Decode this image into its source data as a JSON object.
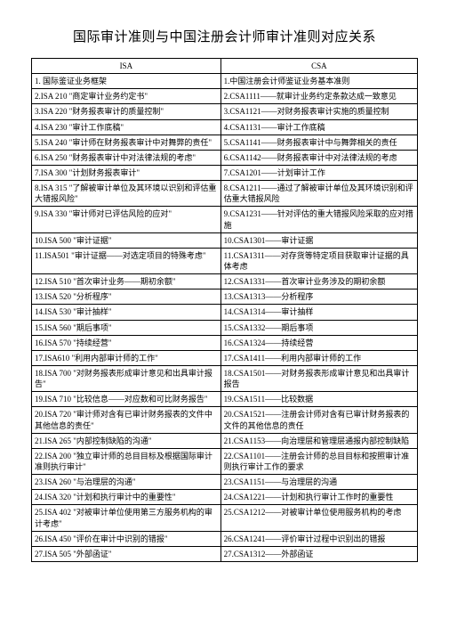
{
  "title": "国际审计准则与中国注册会计师审计准则对应关系",
  "headers": {
    "left": "ISA",
    "right": "CSA"
  },
  "rows": [
    {
      "l": "1. 国际鉴证业务框架",
      "r": "1.中国注册会计师鉴证业务基本准则"
    },
    {
      "l": "2.ISA 210 \"商定审计业务约定书\"",
      "r": "2.CSA1111——就审计业务约定条款达成一致意见"
    },
    {
      "l": "3.ISA 220 \"财务报表审计的质量控制\"",
      "r": "3.CSA1121——对财务报表审计实施的质量控制"
    },
    {
      "l": "4.ISA 230 \"审计工作底稿\"",
      "r": "4.CSA1131——审计工作底稿"
    },
    {
      "l": "5.ISA 240 \"审计师在财务报表审计中对舞弊的责任\"",
      "r": "5.CSA1141——财务报表审计中与舞弊相关的责任"
    },
    {
      "l": "6.ISA 250 \"财务报表审计中对法律法规的考虑\"",
      "r": "6.CSA1142——财务报表审计中对法律法规的考虑"
    },
    {
      "l": "7.ISA 300 \"计划财务报表审计\"",
      "r": "7.CSA1201——计划审计工作"
    },
    {
      "l": "8.ISA 315 \"了解被审计单位及其环境以识别和评估重大错报风险\"",
      "r": "8.CSA1211——通过了解被审计单位及其环境识别和评估重大错报风险"
    },
    {
      "l": "9.ISA 330 \"审计师对已评估风险的应对\"",
      "r": "9.CSA1231——针对评估的重大错报风险采取的应对措施"
    },
    {
      "l": "10.ISA 500 \"审计证据\"",
      "r": "10.CSA1301——审计证据"
    },
    {
      "l": "11.ISA501 \"审计证据——对选定项目的特殊考虑\"",
      "r": "11.CSA1311——对存货等特定项目获取审计证据的具体考虑"
    },
    {
      "l": "12.ISA 510 \"首次审计业务——期初余额\"",
      "r": "12.CSA1331——首次审计业务涉及的期初余额"
    },
    {
      "l": "13.ISA 520 \"分析程序\"",
      "r": "13.CSA1313——分析程序"
    },
    {
      "l": "14.ISA 530 \"审计抽样\"",
      "r": "14.CSA1314——审计抽样"
    },
    {
      "l": "15.ISA 560 \"期后事项\"",
      "r": "15.CSA1332——期后事项"
    },
    {
      "l": "16.ISA 570 \"持续经营\"",
      "r": "16.CSA1324——持续经营"
    },
    {
      "l": "17.ISA610 \"利用内部审计师的工作\"",
      "r": "17.CSA1411——利用内部审计师的工作"
    },
    {
      "l": "18.ISA 700 \"对财务报表形成审计意见和出具审计报告\"",
      "r": "18.CSA1501——对财务报表形成审计意见和出具审计报告"
    },
    {
      "l": "19.ISA 710 \"比较信息——对应数和可比财务报告\"",
      "r": "19.CSA1511——比较数据"
    },
    {
      "l": "20.ISA 720 \"审计师对含有已审计财务报表的文件中其他信息的责任\"",
      "r": "20.CSA1521——注册会计师对含有已审计财务报表的文件的其他信息的责任"
    },
    {
      "l": "21.ISA 265 \"内部控制缺陷的沟通\"",
      "r": "21.CSA1153——向治理层和管理层通报内部控制缺陷"
    },
    {
      "l": "22.ISA 200 \"独立审计师的总目目标及根据国际审计准则执行审计\"",
      "r": "22.CSA1101——注册会计师的总目目标和按照审计准则执行审计工作的要求"
    },
    {
      "l": "23.ISA 260 \"与治理层的沟通\"",
      "r": "23.CSA1151——与治理层的沟通"
    },
    {
      "l": "24.ISA 320 \"计划和执行审计中的重要性\"",
      "r": "24.CSA1221——计划和执行审计工作时的重要性"
    },
    {
      "l": "25.ISA 402 \"对被审计单位使用第三方服务机构的审计考虑\"",
      "r": "25.CSA1212——对被审计单位使用服务机构的考虑"
    },
    {
      "l": "26.ISA 450 \"评价在审计中识别的错报\"",
      "r": "26.CSA1241——评价审计过程中识别出的错报"
    },
    {
      "l": "27.ISA 505 \"外部函证\"",
      "r": "27.CSA1312——外部函证"
    }
  ]
}
